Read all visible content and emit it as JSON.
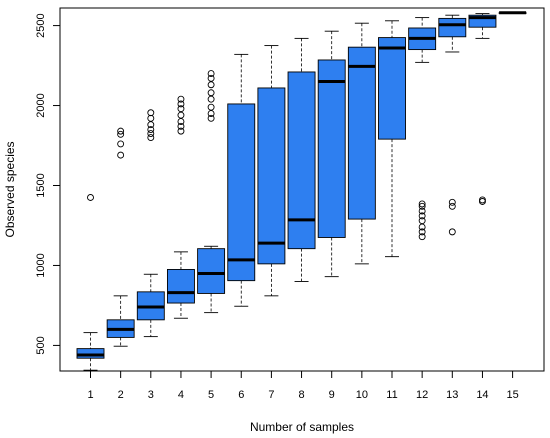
{
  "chart_data": {
    "type": "boxplot",
    "title": "",
    "xlabel": "Number of samples",
    "ylabel": "Observed species",
    "ylim": [
      340,
      2610
    ],
    "y_ticks": [
      500,
      1000,
      1500,
      2000,
      2500
    ],
    "categories": [
      "1",
      "2",
      "3",
      "4",
      "5",
      "6",
      "7",
      "8",
      "9",
      "10",
      "11",
      "12",
      "13",
      "14",
      "15"
    ],
    "box_color": "#2e7ff0",
    "median_color": "#000000",
    "boxes": [
      {
        "category": "1",
        "whisker_low": 345,
        "q1": 420,
        "median": 440,
        "q3": 480,
        "whisker_high": 580,
        "outliers": [
          1425
        ]
      },
      {
        "category": "2",
        "whisker_low": 495,
        "q1": 550,
        "median": 600,
        "q3": 660,
        "whisker_high": 810,
        "outliers": [
          1690,
          1760,
          1820,
          1840
        ]
      },
      {
        "category": "3",
        "whisker_low": 555,
        "q1": 660,
        "median": 740,
        "q3": 835,
        "whisker_high": 945,
        "outliers": [
          1800,
          1825,
          1850,
          1880,
          1920,
          1955
        ]
      },
      {
        "category": "4",
        "whisker_low": 670,
        "q1": 765,
        "median": 830,
        "q3": 975,
        "whisker_high": 1085,
        "outliers": [
          1840,
          1870,
          1900,
          1940,
          1980,
          2010,
          2040
        ]
      },
      {
        "category": "5",
        "whisker_low": 705,
        "q1": 825,
        "median": 950,
        "q3": 1105,
        "whisker_high": 1120,
        "outliers": [
          1920,
          1950,
          1990,
          2040,
          2080,
          2130,
          2170,
          2200
        ]
      },
      {
        "category": "6",
        "whisker_low": 745,
        "q1": 905,
        "median": 1035,
        "q3": 2010,
        "whisker_high": 2320,
        "outliers": []
      },
      {
        "category": "7",
        "whisker_low": 810,
        "q1": 1010,
        "median": 1140,
        "q3": 2110,
        "whisker_high": 2375,
        "outliers": []
      },
      {
        "category": "8",
        "whisker_low": 900,
        "q1": 1105,
        "median": 1285,
        "q3": 2210,
        "whisker_high": 2420,
        "outliers": []
      },
      {
        "category": "9",
        "whisker_low": 930,
        "q1": 1175,
        "median": 2150,
        "q3": 2285,
        "whisker_high": 2465,
        "outliers": []
      },
      {
        "category": "10",
        "whisker_low": 1010,
        "q1": 1290,
        "median": 2245,
        "q3": 2365,
        "whisker_high": 2515,
        "outliers": []
      },
      {
        "category": "11",
        "whisker_low": 1055,
        "q1": 1790,
        "median": 2360,
        "q3": 2425,
        "whisker_high": 2530,
        "outliers": []
      },
      {
        "category": "12",
        "whisker_low": 2270,
        "q1": 2350,
        "median": 2420,
        "q3": 2485,
        "whisker_high": 2550,
        "outliers": [
          1180,
          1210,
          1240,
          1280,
          1310,
          1340,
          1370,
          1385
        ]
      },
      {
        "category": "13",
        "whisker_low": 2335,
        "q1": 2430,
        "median": 2505,
        "q3": 2545,
        "whisker_high": 2565,
        "outliers": [
          1210,
          1370,
          1395
        ]
      },
      {
        "category": "14",
        "whisker_low": 2420,
        "q1": 2490,
        "median": 2550,
        "q3": 2565,
        "whisker_high": 2575,
        "outliers": [
          1400,
          1410
        ]
      },
      {
        "category": "15",
        "whisker_low": 2580,
        "q1": 2580,
        "median": 2580,
        "q3": 2580,
        "whisker_high": 2580,
        "outliers": []
      }
    ]
  }
}
